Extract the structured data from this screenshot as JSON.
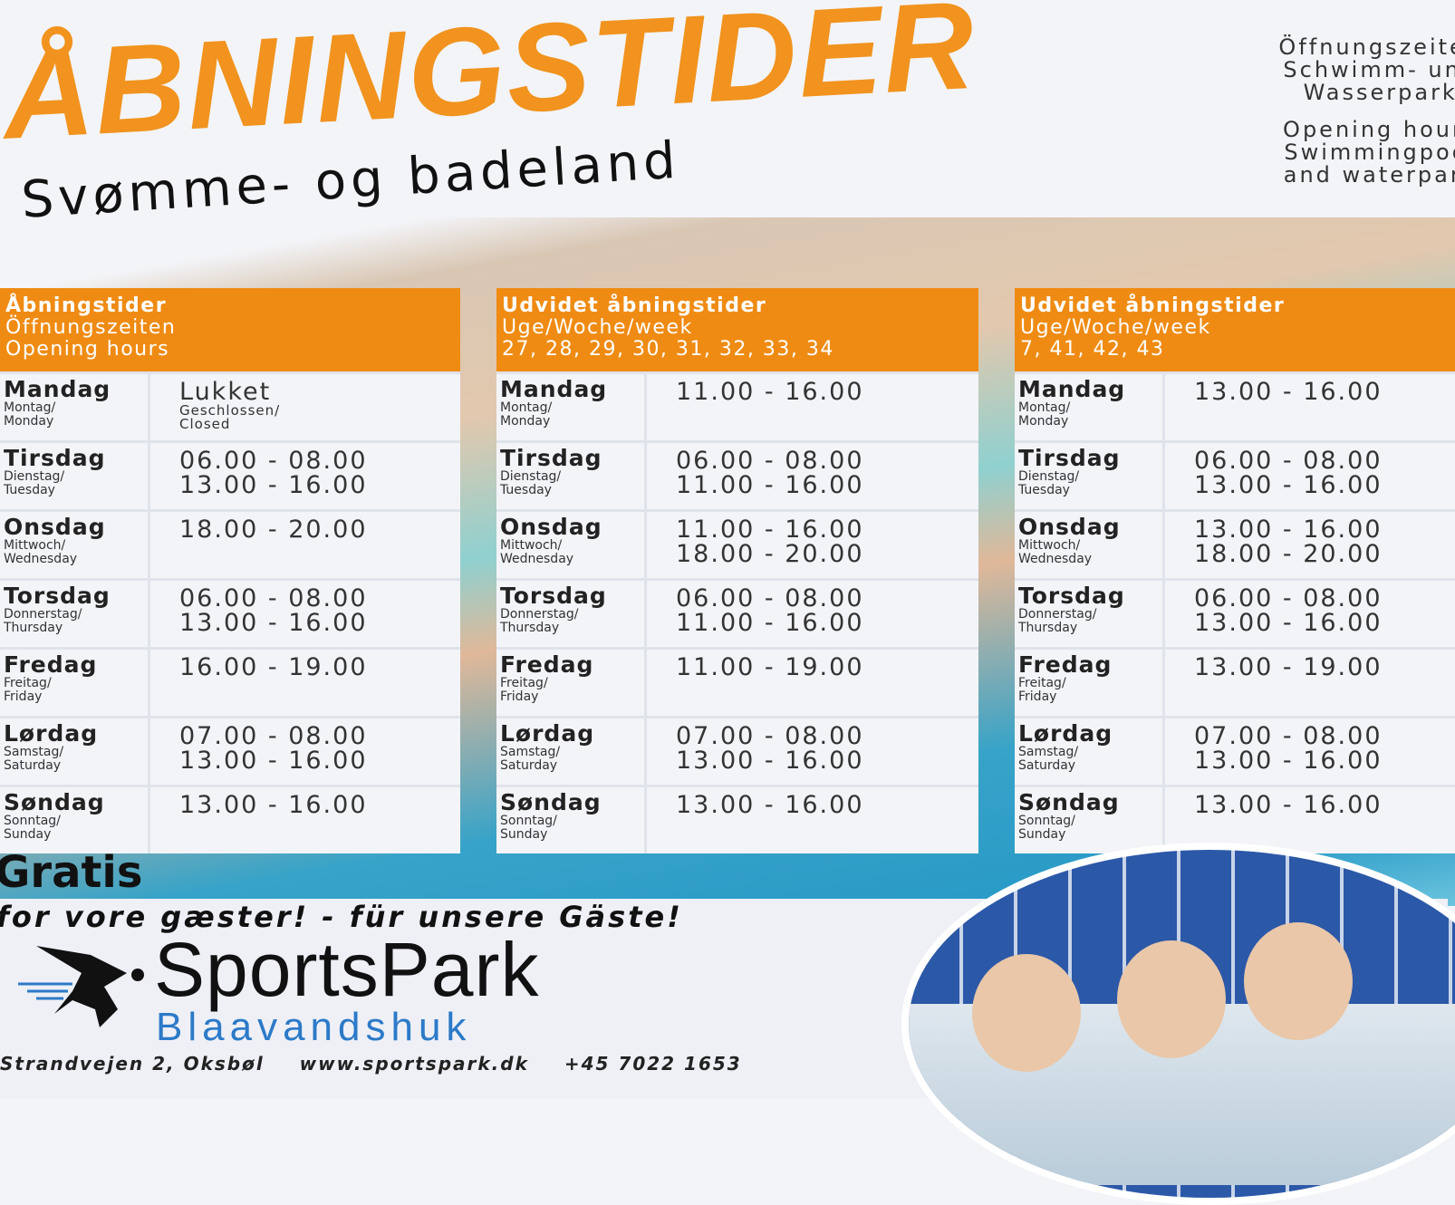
{
  "header": {
    "title": "ÅBNINGSTIDER",
    "subtitle": "Svømme- og badeland",
    "side_de": [
      "Öffnungszeiten",
      "Schwimm- und",
      "Wasserpark"
    ],
    "side_en": [
      "Opening hours",
      "Swimmingpool",
      "and waterpark"
    ]
  },
  "colors": {
    "accent": "#ef8b13",
    "title": "#f1931e",
    "brand_blue": "#2c7ac8"
  },
  "tables": [
    {
      "header": [
        "Åbningstider",
        "Öffnungszeiten",
        "Opening hours"
      ],
      "rows": [
        {
          "day": "Mandag",
          "sub": [
            "Montag/",
            "Monday"
          ],
          "times": [
            "Lukket"
          ],
          "note": [
            "Geschlossen/",
            "Closed"
          ]
        },
        {
          "day": "Tirsdag",
          "sub": [
            "Dienstag/",
            "Tuesday"
          ],
          "times": [
            "06.00 -  08.00",
            "13.00  -  16.00"
          ]
        },
        {
          "day": "Onsdag",
          "sub": [
            "Mittwoch/",
            "Wednesday"
          ],
          "times": [
            "18.00  -  20.00"
          ]
        },
        {
          "day": "Torsdag",
          "sub": [
            "Donnerstag/",
            "Thursday"
          ],
          "times": [
            "06.00 -  08.00",
            "13.00  -  16.00"
          ]
        },
        {
          "day": "Fredag",
          "sub": [
            "Freitag/",
            "Friday"
          ],
          "times": [
            "16.00  -  19.00"
          ]
        },
        {
          "day": "Lørdag",
          "sub": [
            "Samstag/",
            "Saturday"
          ],
          "times": [
            "07.00  -  08.00",
            "13.00  -  16.00"
          ]
        },
        {
          "day": "Søndag",
          "sub": [
            "Sonntag/",
            "Sunday"
          ],
          "times": [
            "13.00  -  16.00"
          ]
        }
      ]
    },
    {
      "header": [
        "Udvidet åbningstider",
        "Uge/Woche/week",
        "27, 28, 29, 30, 31, 32, 33, 34"
      ],
      "rows": [
        {
          "day": "Mandag",
          "sub": [
            "Montag/",
            "Monday"
          ],
          "times": [
            "11.00  -  16.00"
          ]
        },
        {
          "day": "Tirsdag",
          "sub": [
            "Dienstag/",
            "Tuesday"
          ],
          "times": [
            "06.00 -  08.00",
            "11.00  -  16.00"
          ]
        },
        {
          "day": "Onsdag",
          "sub": [
            "Mittwoch/",
            "Wednesday"
          ],
          "times": [
            "11.00  -  16.00",
            "18.00  -  20.00"
          ]
        },
        {
          "day": "Torsdag",
          "sub": [
            "Donnerstag/",
            "Thursday"
          ],
          "times": [
            "06.00 -  08.00",
            "11.00  -  16.00"
          ]
        },
        {
          "day": "Fredag",
          "sub": [
            "Freitag/",
            "Friday"
          ],
          "times": [
            "11.00  -  19.00"
          ]
        },
        {
          "day": "Lørdag",
          "sub": [
            "Samstag/",
            "Saturday"
          ],
          "times": [
            "07.00  -  08.00",
            "13.00  -  16.00"
          ]
        },
        {
          "day": "Søndag",
          "sub": [
            "Sonntag/",
            "Sunday"
          ],
          "times": [
            "13.00  -  16.00"
          ]
        }
      ]
    },
    {
      "header": [
        "Udvidet åbningstider",
        "Uge/Woche/week",
        "7, 41, 42, 43"
      ],
      "rows": [
        {
          "day": "Mandag",
          "sub": [
            "Montag/",
            "Monday"
          ],
          "times": [
            "13.00 - 16.00"
          ]
        },
        {
          "day": "Tirsdag",
          "sub": [
            "Dienstag/",
            "Tuesday"
          ],
          "times": [
            "06.00 -  08.00",
            "13.00  -  16.00"
          ]
        },
        {
          "day": "Onsdag",
          "sub": [
            "Mittwoch/",
            "Wednesday"
          ],
          "times": [
            "13.00  -  16.00",
            "18.00  -  20.00"
          ]
        },
        {
          "day": "Torsdag",
          "sub": [
            "Donnerstag/",
            "Thursday"
          ],
          "times": [
            "06.00 -  08.00",
            "13.00  -  16.00"
          ]
        },
        {
          "day": "Fredag",
          "sub": [
            "Freitag/",
            "Friday"
          ],
          "times": [
            "13.00  -  19.00"
          ]
        },
        {
          "day": "Lørdag",
          "sub": [
            "Samstag/",
            "Saturday"
          ],
          "times": [
            "07.00  -  08.00",
            "13.00  -  16.00"
          ]
        },
        {
          "day": "Søndag",
          "sub": [
            "Sonntag/",
            "Sunday"
          ],
          "times": [
            "13.00  -  16.00"
          ]
        }
      ]
    }
  ],
  "promo": {
    "gratis": "Gratis",
    "guests": "for vore gæster! - für unsere Gäste!"
  },
  "logo": {
    "name": "SportsPark",
    "sub": "Blaavandshuk",
    "icon": "runner-icon"
  },
  "contact": {
    "address": "Strandvejen 2, Oksbøl",
    "website": "www.sportspark.dk",
    "phone": "+45 7022 1653"
  }
}
